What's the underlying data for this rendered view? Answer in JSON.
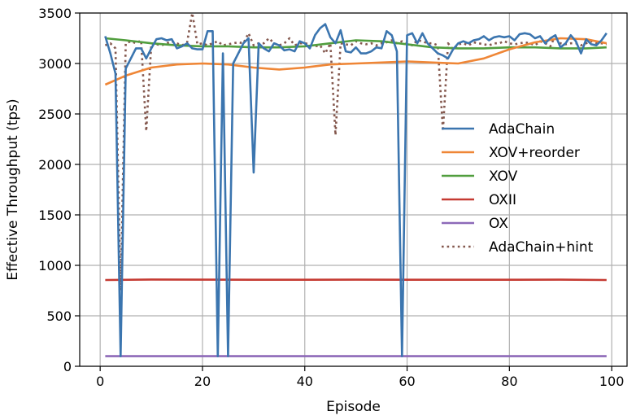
{
  "chart_data": {
    "type": "line",
    "title": "",
    "xlabel": "Episode",
    "ylabel": "Effective Throughput (tps)",
    "xlim": [
      -4,
      103
    ],
    "ylim": [
      0,
      3500
    ],
    "xticks": [
      0,
      20,
      40,
      60,
      80,
      100
    ],
    "yticks": [
      0,
      500,
      1000,
      1500,
      2000,
      2500,
      3000,
      3500
    ],
    "grid": true,
    "legend_position": "center-right",
    "colors": {
      "AdaChain": "#3b75af",
      "XOV+reorder": "#ef8636",
      "XOV": "#519e3e",
      "OXII": "#c53a32",
      "OX": "#8d69b8",
      "AdaChain+hint": "#84584e"
    },
    "series": [
      {
        "name": "AdaChain",
        "style": "solid",
        "x": [
          1,
          2,
          3,
          4,
          5,
          6,
          7,
          8,
          9,
          10,
          11,
          12,
          13,
          14,
          15,
          16,
          17,
          18,
          19,
          20,
          21,
          22,
          23,
          24,
          25,
          26,
          27,
          28,
          29,
          30,
          31,
          32,
          33,
          34,
          35,
          36,
          37,
          38,
          39,
          40,
          41,
          42,
          43,
          44,
          45,
          46,
          47,
          48,
          49,
          50,
          51,
          52,
          53,
          54,
          55,
          56,
          57,
          58,
          59,
          60,
          61,
          62,
          63,
          64,
          65,
          66,
          67,
          68,
          69,
          70,
          71,
          72,
          73,
          74,
          75,
          76,
          77,
          78,
          79,
          80,
          81,
          82,
          83,
          84,
          85,
          86,
          87,
          88,
          89,
          90,
          91,
          92,
          93,
          94,
          95,
          96,
          97,
          98,
          99
        ],
        "y": [
          3270,
          3100,
          2900,
          100,
          2950,
          3050,
          3150,
          3150,
          3050,
          3150,
          3240,
          3250,
          3230,
          3240,
          3150,
          3170,
          3200,
          3150,
          3140,
          3140,
          3320,
          3320,
          100,
          3100,
          100,
          3000,
          3100,
          3200,
          3250,
          1920,
          3200,
          3150,
          3120,
          3200,
          3180,
          3130,
          3140,
          3120,
          3220,
          3200,
          3150,
          3280,
          3350,
          3390,
          3260,
          3200,
          3330,
          3120,
          3110,
          3160,
          3100,
          3100,
          3120,
          3160,
          3150,
          3320,
          3280,
          3120,
          100,
          3280,
          3300,
          3200,
          3300,
          3200,
          3150,
          3100,
          3080,
          3050,
          3140,
          3200,
          3220,
          3200,
          3230,
          3240,
          3270,
          3230,
          3260,
          3270,
          3260,
          3270,
          3230,
          3290,
          3300,
          3290,
          3250,
          3270,
          3200,
          3250,
          3280,
          3160,
          3200,
          3280,
          3220,
          3100,
          3240,
          3190,
          3180,
          3230,
          3300
        ]
      },
      {
        "name": "XOV+reorder",
        "style": "solid",
        "x": [
          1,
          5,
          10,
          15,
          20,
          25,
          30,
          35,
          40,
          45,
          50,
          55,
          60,
          65,
          70,
          75,
          80,
          85,
          90,
          95,
          99
        ],
        "y": [
          2790,
          2880,
          2960,
          2990,
          3000,
          2990,
          2960,
          2940,
          2960,
          2990,
          3000,
          3010,
          3020,
          3010,
          3000,
          3050,
          3140,
          3210,
          3250,
          3240,
          3200
        ]
      },
      {
        "name": "XOV",
        "style": "solid",
        "x": [
          1,
          5,
          10,
          15,
          20,
          25,
          30,
          35,
          40,
          45,
          50,
          55,
          60,
          65,
          70,
          75,
          80,
          85,
          90,
          95,
          99
        ],
        "y": [
          3250,
          3230,
          3200,
          3180,
          3170,
          3170,
          3160,
          3160,
          3170,
          3200,
          3230,
          3220,
          3190,
          3160,
          3150,
          3150,
          3160,
          3160,
          3150,
          3150,
          3160
        ]
      },
      {
        "name": "OXII",
        "style": "solid",
        "x": [
          1,
          10,
          20,
          30,
          40,
          50,
          60,
          70,
          80,
          90,
          99
        ],
        "y": [
          855,
          860,
          858,
          857,
          857,
          858,
          857,
          857,
          857,
          858,
          855
        ]
      },
      {
        "name": "OX",
        "style": "solid",
        "x": [
          1,
          99
        ],
        "y": [
          100,
          100
        ]
      },
      {
        "name": "AdaChain+hint",
        "style": "dotted",
        "x": [
          1,
          2,
          3,
          4,
          5,
          6,
          7,
          8,
          9,
          10,
          11,
          12,
          13,
          14,
          15,
          16,
          17,
          18,
          19,
          20,
          21,
          22,
          23,
          24,
          25,
          26,
          27,
          28,
          29,
          30,
          31,
          32,
          33,
          34,
          35,
          36,
          37,
          38,
          39,
          40,
          41,
          42,
          43,
          44,
          45,
          46,
          47,
          48,
          49,
          50,
          51,
          52,
          53,
          54,
          55,
          56,
          57,
          58,
          59,
          60,
          61,
          62,
          63,
          64,
          65,
          66,
          67,
          68,
          69,
          70,
          71,
          72,
          73,
          74,
          75,
          76,
          77,
          78,
          79,
          80,
          81,
          82,
          83,
          84,
          85,
          86,
          87,
          88,
          89,
          90,
          91,
          92,
          93,
          94,
          95,
          96,
          97,
          98,
          99
        ],
        "y": [
          3180,
          3200,
          3150,
          750,
          3200,
          3220,
          3200,
          3230,
          2330,
          3200,
          3190,
          3180,
          3200,
          3220,
          3200,
          3180,
          3210,
          3500,
          3190,
          3200,
          3180,
          3200,
          3220,
          3180,
          3190,
          3200,
          3210,
          3200,
          3300,
          3180,
          3200,
          3200,
          3250,
          3200,
          3180,
          3200,
          3250,
          3180,
          3200,
          3200,
          3190,
          3170,
          3180,
          3100,
          3200,
          2290,
          3200,
          3190,
          3180,
          3220,
          3200,
          3190,
          3200,
          3180,
          3200,
          3210,
          3230,
          3200,
          3220,
          3200,
          3180,
          3230,
          3220,
          3200,
          3200,
          3180,
          2330,
          3200,
          3140,
          3190,
          3200,
          3180,
          3210,
          3200,
          3190,
          3180,
          3200,
          3200,
          3220,
          3200,
          3190,
          3200,
          3210,
          3200,
          3180,
          3220,
          3200,
          3170,
          3280,
          3200,
          3190,
          3200,
          3200,
          3180,
          3200,
          3220,
          3200,
          3200,
          3190
        ]
      }
    ]
  }
}
